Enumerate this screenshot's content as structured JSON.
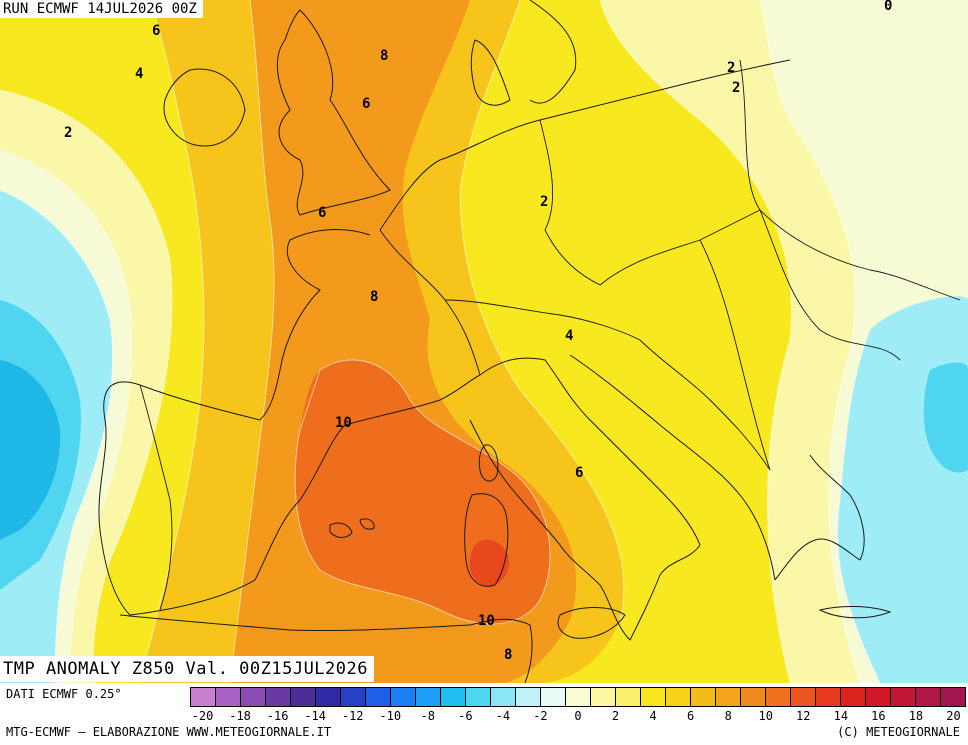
{
  "header": {
    "run_label": "RUN ECMWF 14JUL2026 00Z"
  },
  "map_title": "TMP ANOMALY Z850 Val. 00Z15JUL2026",
  "footer": {
    "data_source": "DATI ECMWF 0.25°",
    "credits": "MTG-ECMWF – ELABORAZIONE WWW.METEOGIORNALE.IT",
    "copyright": "(C) METEOGIORNALE"
  },
  "contour_labels": [
    "6",
    "4",
    "2",
    "8",
    "6",
    "6",
    "8",
    "10",
    "2",
    "2",
    "2",
    "4",
    "6",
    "10",
    "8",
    "0"
  ],
  "colors": {
    "deep_blue": "#1fb8e6",
    "light_blue": "#9eecf6",
    "pale": "#f6fbd6",
    "pale_yellow": "#fbf7a8",
    "yellow": "#f8e81f",
    "gold": "#f6c41a",
    "orange": "#f39a1d",
    "dark_orange": "#ef6e1e",
    "red_orange": "#e9481d"
  },
  "scale": {
    "colors": [
      "#c77fd0",
      "#a863c4",
      "#8a4cb6",
      "#6a3aa3",
      "#4b2f97",
      "#2f2aa3",
      "#2641c4",
      "#1f5ee6",
      "#1b7ef5",
      "#1c9ff5",
      "#21bff0",
      "#4fd5f0",
      "#8be6f3",
      "#bff2f8",
      "#e9fbf7",
      "#f9fbd4",
      "#fbf6a0",
      "#f9ef6a",
      "#f8e61f",
      "#f6d21a",
      "#f4bc1a",
      "#f3a41c",
      "#f18a1e",
      "#ef701e",
      "#ec551d",
      "#e6391d",
      "#dd231f",
      "#d01a28",
      "#c11836",
      "#b01745",
      "#a2174f"
    ],
    "labels": [
      "-20",
      "-18",
      "-16",
      "-14",
      "-12",
      "-10",
      "-8",
      "-6",
      "-4",
      "-2",
      "0",
      "2",
      "4",
      "6",
      "8",
      "10",
      "12",
      "14",
      "16",
      "18",
      "20"
    ]
  }
}
